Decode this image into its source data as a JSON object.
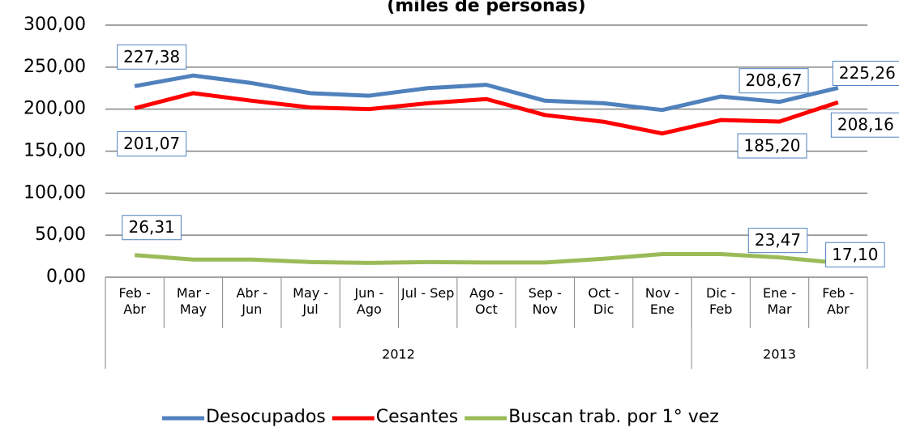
{
  "chart_data": {
    "type": "line",
    "title": "(miles de personas)",
    "categories": [
      "Feb - Abr",
      "Mar - May",
      "Abr - Jun",
      "May - Jul",
      "Jun - Ago",
      "Jul - Sep",
      "Ago - Oct",
      "Sep - Nov",
      "Oct - Dic",
      "Nov - Ene",
      "Dic - Feb",
      "Ene - Mar",
      "Feb - Abr"
    ],
    "category_groups": [
      {
        "label": "2012",
        "span": 10
      },
      {
        "label": "2013",
        "span": 3
      }
    ],
    "series": [
      {
        "name": "Desocupados",
        "color": "#4f81bd",
        "values": [
          227.38,
          240,
          231,
          219,
          216,
          225,
          229,
          210,
          207,
          199,
          215,
          208.67,
          225.26
        ],
        "value_labels": [
          "227,38",
          null,
          null,
          null,
          null,
          null,
          null,
          null,
          null,
          null,
          null,
          "208,67",
          "225,26"
        ]
      },
      {
        "name": "Cesantes",
        "color": "#ff0000",
        "values": [
          201.07,
          219,
          210,
          202,
          200,
          207,
          212,
          193,
          185,
          171,
          187,
          185.2,
          208.16
        ],
        "value_labels": [
          "201,07",
          null,
          null,
          null,
          null,
          null,
          null,
          null,
          null,
          null,
          null,
          "185,20",
          "208,16"
        ]
      },
      {
        "name": "Buscan trab. por 1° vez",
        "color": "#9bbb59",
        "values": [
          26.31,
          21,
          21,
          18,
          17,
          18,
          17.5,
          17.5,
          22,
          27.5,
          27.5,
          23.47,
          17.1
        ],
        "value_labels": [
          "26,31",
          null,
          null,
          null,
          null,
          null,
          null,
          null,
          null,
          null,
          null,
          "23,47",
          "17,10"
        ]
      }
    ],
    "ylim": [
      0,
      300
    ],
    "yticks": [
      {
        "value": 0,
        "label": "0,00"
      },
      {
        "value": 50,
        "label": "50,00"
      },
      {
        "value": 100,
        "label": "100,00"
      },
      {
        "value": 150,
        "label": "150,00"
      },
      {
        "value": 200,
        "label": "200,00"
      },
      {
        "value": 250,
        "label": "250,00"
      },
      {
        "value": 300,
        "label": "300,00"
      }
    ],
    "grid": true,
    "legend": "bottom"
  }
}
